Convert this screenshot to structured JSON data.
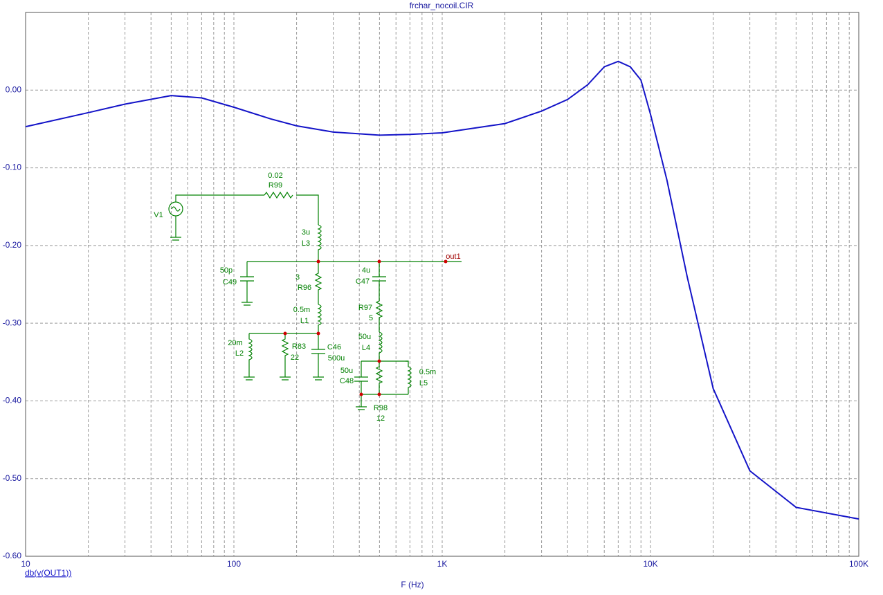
{
  "chart_data": {
    "type": "line",
    "title": "frchar_nocoil.CIR",
    "x_label": "F (Hz)",
    "log_x": true,
    "grid": true,
    "x": [
      10,
      20,
      30,
      50,
      70,
      100,
      150,
      200,
      300,
      500,
      700,
      1000,
      2000,
      3000,
      4000,
      5000,
      6000,
      7000,
      8000,
      9000,
      10000,
      12000,
      15000,
      20000,
      30000,
      50000,
      100000
    ],
    "series": [
      {
        "name": "db(v(OUT1))",
        "color": "#1414c8",
        "values": [
          -0.047,
          -0.029,
          -0.018,
          -0.007,
          -0.01,
          -0.022,
          -0.037,
          -0.046,
          -0.054,
          -0.058,
          -0.057,
          -0.055,
          -0.043,
          -0.027,
          -0.012,
          0.007,
          0.03,
          0.037,
          0.03,
          0.013,
          -0.031,
          -0.116,
          -0.24,
          -0.384,
          -0.49,
          -0.537,
          -0.552
        ]
      }
    ],
    "xlim": [
      10,
      100000
    ],
    "xticks": [
      10,
      100,
      {
        "value": 1000,
        "label": "1K"
      },
      {
        "value": 10000,
        "label": "10K"
      },
      {
        "value": 100000,
        "label": "100K"
      }
    ],
    "xminorticks": [
      20,
      30,
      40,
      50,
      60,
      70,
      80,
      90,
      200,
      300,
      400,
      500,
      600,
      700,
      800,
      900,
      2000,
      3000,
      4000,
      5000,
      6000,
      7000,
      8000,
      9000,
      20000,
      30000,
      40000,
      50000,
      60000,
      70000,
      80000,
      90000
    ],
    "ylim": [
      -0.6,
      0.1
    ],
    "yticks": [
      {
        "value": -0.6,
        "label": "-0.60"
      },
      {
        "value": -0.5,
        "label": "-0.50"
      },
      {
        "value": -0.4,
        "label": "-0.40"
      },
      {
        "value": -0.3,
        "label": "-0.30"
      },
      {
        "value": -0.2,
        "label": "-0.20"
      },
      {
        "value": -0.1,
        "label": "-0.10"
      },
      {
        "value": 0,
        "label": "0.00"
      }
    ]
  },
  "schematic": {
    "labels": [
      "0.02",
      "R99",
      "V1",
      "3u",
      "L3",
      "50p",
      "C49",
      "3",
      "R96",
      "4u",
      "C47",
      "out1",
      "0.5m",
      "L1",
      "R97",
      "5",
      "20m",
      "L2",
      "R83",
      "22",
      "C46",
      "500u",
      "50u",
      "L4",
      "50u",
      "C48",
      "0.5m",
      "L5",
      "R98",
      "12"
    ]
  }
}
